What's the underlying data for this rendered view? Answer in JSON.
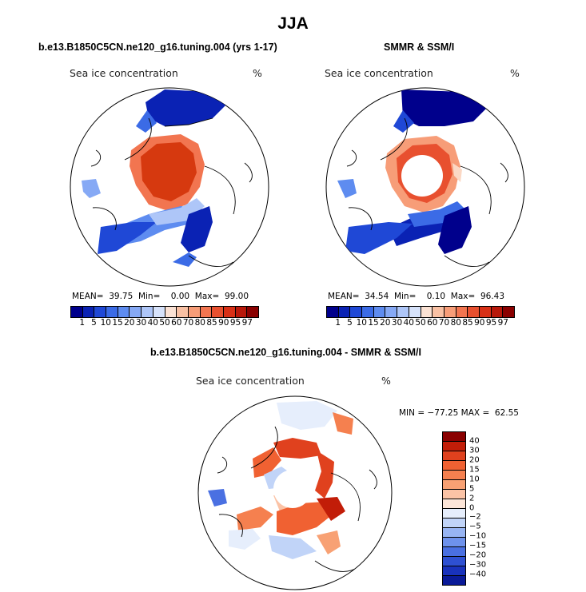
{
  "page": {
    "title": "JJA"
  },
  "panels": {
    "model": {
      "title": "b.e13.B1850C5CN.ne120_g16.tuning.004 (yrs 1-17)",
      "label": "Sea ice concentration",
      "unit": "%",
      "stats_text": "MEAN=  39.75  Min=    0.00  Max=  99.00"
    },
    "obs": {
      "title": "SMMR & SSM/I",
      "label": "Sea ice concentration",
      "unit": "%",
      "stats_text": "MEAN=  34.54  Min=    0.10  Max=  96.43"
    },
    "diff": {
      "title": "b.e13.B1850C5CN.ne120_g16.tuning.004 - SMMR & SSM/I",
      "label": "Sea ice concentration",
      "unit": "%",
      "stats_text": "MIN = −77.25 MAX =  62.55"
    }
  },
  "colorbar_concentration": {
    "labels": [
      "1",
      "5",
      "10",
      "15",
      "20",
      "30",
      "40",
      "50",
      "60",
      "70",
      "80",
      "85",
      "90",
      "95",
      "97"
    ],
    "colors": [
      "#00008c",
      "#0a22b4",
      "#1f48d6",
      "#3b6be6",
      "#5e8cf0",
      "#86a9f5",
      "#aec6f8",
      "#d6e2fa",
      "#fbe2d4",
      "#f9c1a4",
      "#f79d78",
      "#f27550",
      "#e8502f",
      "#d83016",
      "#b8180a",
      "#8a0000"
    ]
  },
  "colorbar_difference": {
    "labels": [
      "40",
      "30",
      "20",
      "15",
      "10",
      "5",
      "2",
      "0",
      "−2",
      "−5",
      "−10",
      "−15",
      "−20",
      "−30",
      "−40"
    ],
    "colors": [
      "#8a0000",
      "#c21d08",
      "#e0411e",
      "#f06132",
      "#f5804f",
      "#f8a174",
      "#fbc3a6",
      "#fde6d9",
      "#e6eefc",
      "#c1d4f8",
      "#97b4f3",
      "#6e92ec",
      "#4a70e2",
      "#2e50d2",
      "#1932bc",
      "#0a1a98"
    ]
  },
  "map_colors": {
    "deep_red": "#d6390f",
    "red": "#e8502f",
    "orange": "#f27550",
    "salmon": "#f9a07a",
    "pale": "#fbd8c4",
    "light_blue": "#aec6f8",
    "mid_blue": "#5e8cf0",
    "blue": "#1f48d6",
    "navy": "#00008c",
    "land_line": "#000000",
    "pole_hole": "#ffffff"
  }
}
